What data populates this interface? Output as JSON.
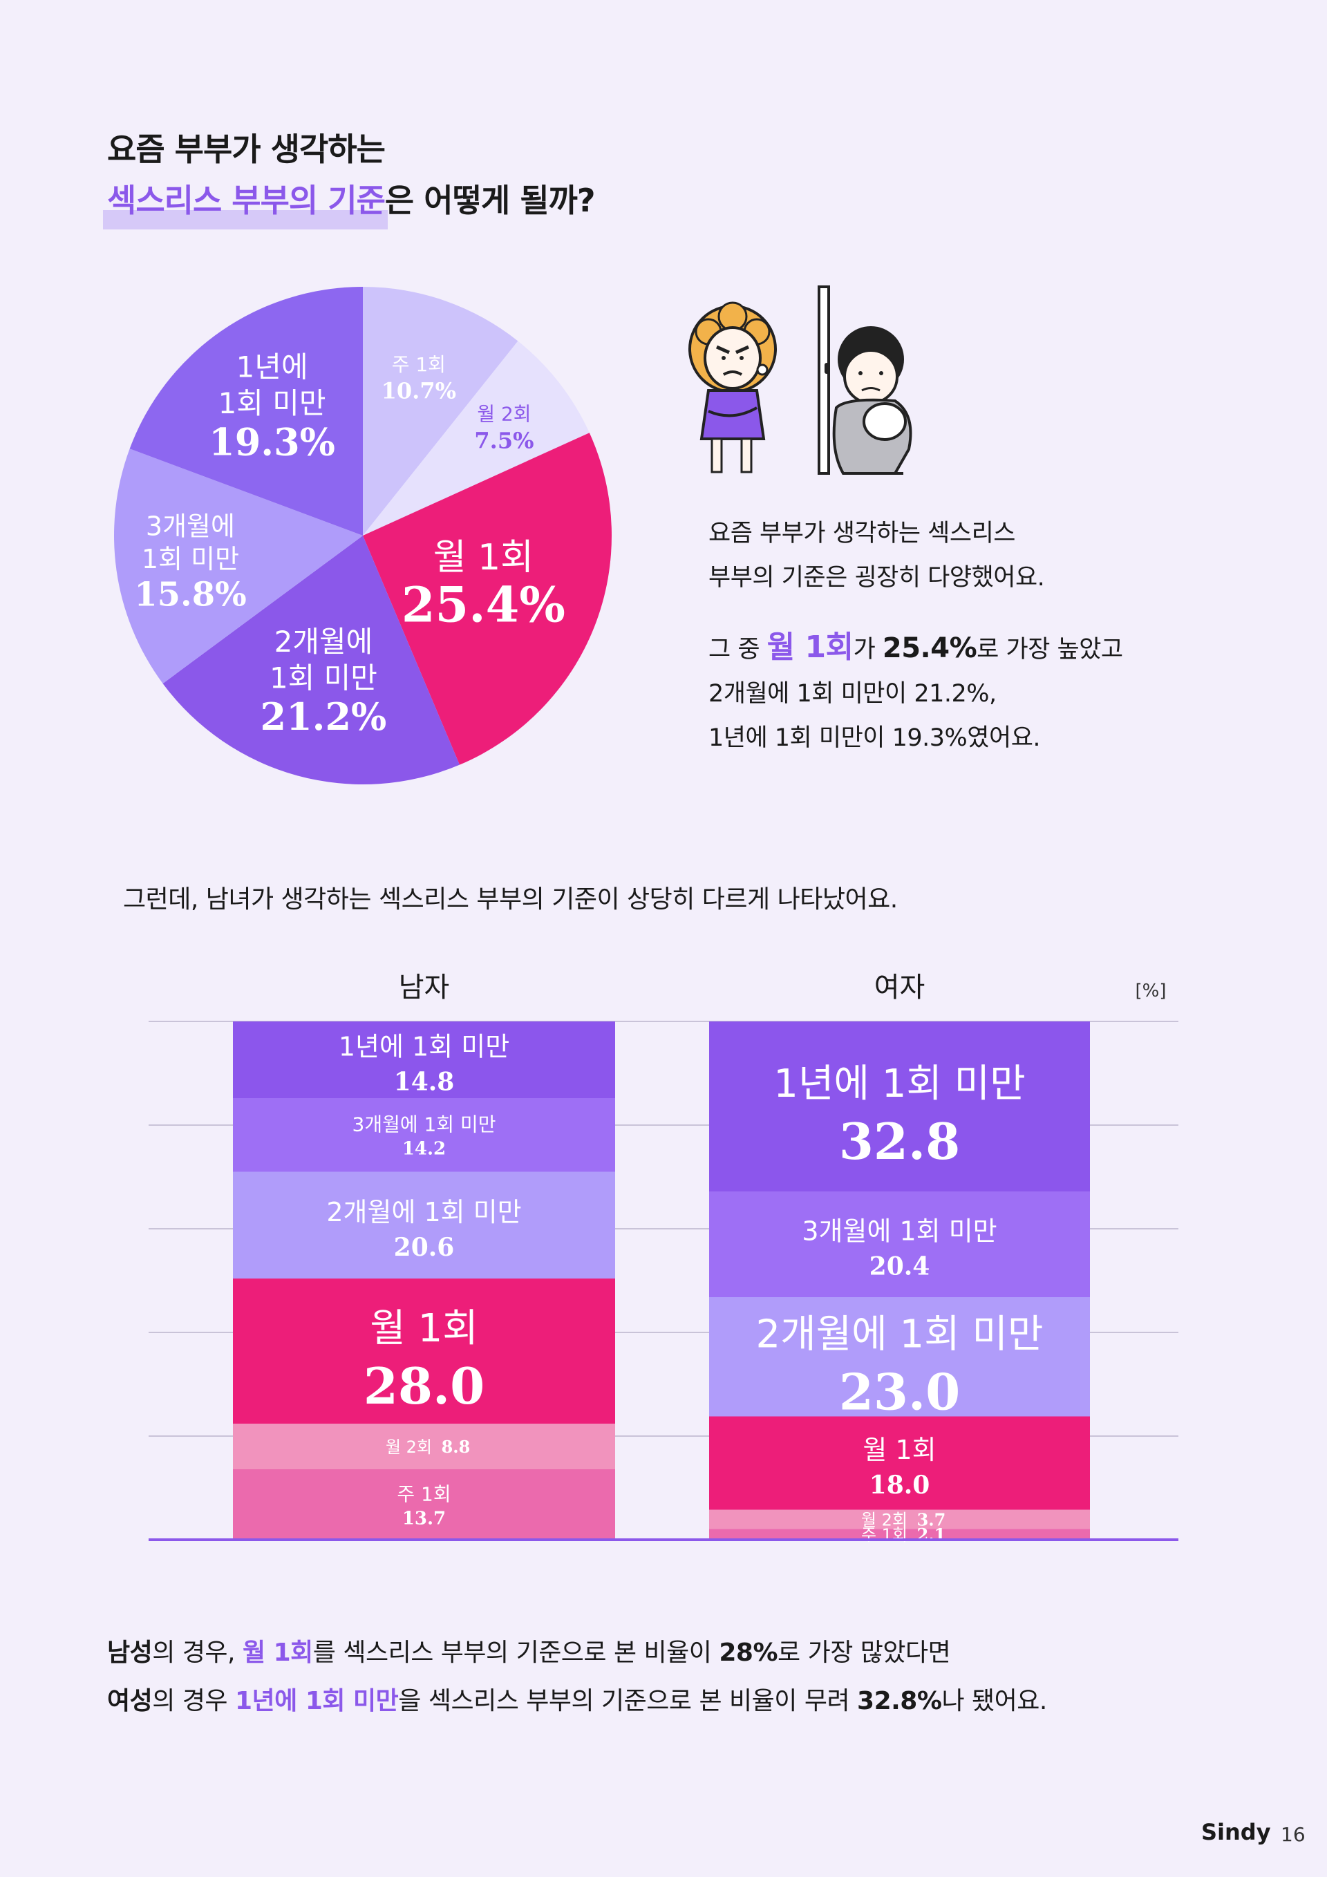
{
  "title": {
    "line1": "요즘 부부가 생각하는",
    "line2_highlight": "섹스리스 부부의 기준",
    "line2_rest": "은 어떻게 될까?"
  },
  "paragraph1": {
    "line1": "요즘 부부가 생각하는 섹스리스",
    "line2": "부부의 기준은 굉장히 다양했어요."
  },
  "paragraph2": {
    "prefix": "그 중 ",
    "highlight": "월 1회",
    "mid": "가 ",
    "value": "25.4%",
    "suffix": "로 가장 높았고",
    "line2": "2개월에 1회 미만이 21.2%,",
    "line3": "1년에 1회 미만이 19.3%였어요."
  },
  "sub_heading": "그런데, 남녀가 생각하는 섹스리스 부부의 기준이 상당히 다르게 나타났어요.",
  "summary": {
    "l1_bold": "남성",
    "l1_a": "의 경우, ",
    "l1_hl": "월 1회",
    "l1_b": "를 섹스리스 부부의 기준으로 본 비율이 ",
    "l1_val": "28%",
    "l1_c": "로 가장 많았다면",
    "l2_bold": "여성",
    "l2_a": "의 경우 ",
    "l2_hl": "1년에 1회 미만",
    "l2_b": "을 섹스리스 부부의 기준으로 본 비율이 무려 ",
    "l2_val": "32.8%",
    "l2_c": "나 됐어요."
  },
  "footer": {
    "brand": "Sindy",
    "page": "16"
  },
  "colors": {
    "accent_purple": "#8b58ea",
    "magenta": "#ed1e79",
    "background": "#f3effb"
  },
  "chart_data": [
    {
      "type": "pie",
      "title": "",
      "slices": [
        {
          "label": "주 1회",
          "value": 10.7,
          "display": "10.7%",
          "color": "#cdc3fb"
        },
        {
          "label": "월 2회",
          "value": 7.5,
          "display": "7.5%",
          "color": "#e6e1fd"
        },
        {
          "label": "월 1회",
          "value": 25.4,
          "display": "25.4%",
          "color": "#ed1e79"
        },
        {
          "label": "2개월에 1회 미만",
          "label_lines": [
            "2개월에",
            "1회 미만"
          ],
          "value": 21.2,
          "display": "21.2%",
          "color": "#8b58ea"
        },
        {
          "label": "3개월에 1회 미만",
          "label_lines": [
            "3개월에",
            "1회 미만"
          ],
          "value": 15.8,
          "display": "15.8%",
          "color": "#af9cfa"
        },
        {
          "label": "1년에 1회 미만",
          "label_lines": [
            "1년에",
            "1회 미만"
          ],
          "value": 19.3,
          "display": "19.3%",
          "color": "#8d67f0"
        }
      ]
    },
    {
      "type": "bar",
      "stacked": true,
      "unit": "[%]",
      "categories": [
        "남자",
        "여자"
      ],
      "series": [
        {
          "name": "1년에 1회 미만",
          "values": [
            14.8,
            32.8
          ],
          "color": "#8c56ec"
        },
        {
          "name": "3개월에 1회 미만",
          "values": [
            14.2,
            20.4
          ],
          "color": "#9e6ff5"
        },
        {
          "name": "2개월에 1회 미만",
          "values": [
            20.6,
            23.0
          ],
          "color": "#b09cfa"
        },
        {
          "name": "월 1회",
          "values": [
            28.0,
            18.0
          ],
          "color": "#ed1e79"
        },
        {
          "name": "월 2회",
          "values": [
            8.8,
            3.7
          ],
          "color": "#f193bd"
        },
        {
          "name": "주 1회",
          "values": [
            13.7,
            2.1
          ],
          "color": "#eb6aad"
        }
      ],
      "display_values": {
        "남자": [
          "14.8",
          "14.2",
          "20.6",
          "28.0",
          "8.8",
          "13.7"
        ],
        "여자": [
          "32.8",
          "20.4",
          "23.0",
          "18.0",
          "3.7",
          "2.1"
        ]
      },
      "ylim": [
        0,
        100
      ],
      "grid": true
    }
  ]
}
